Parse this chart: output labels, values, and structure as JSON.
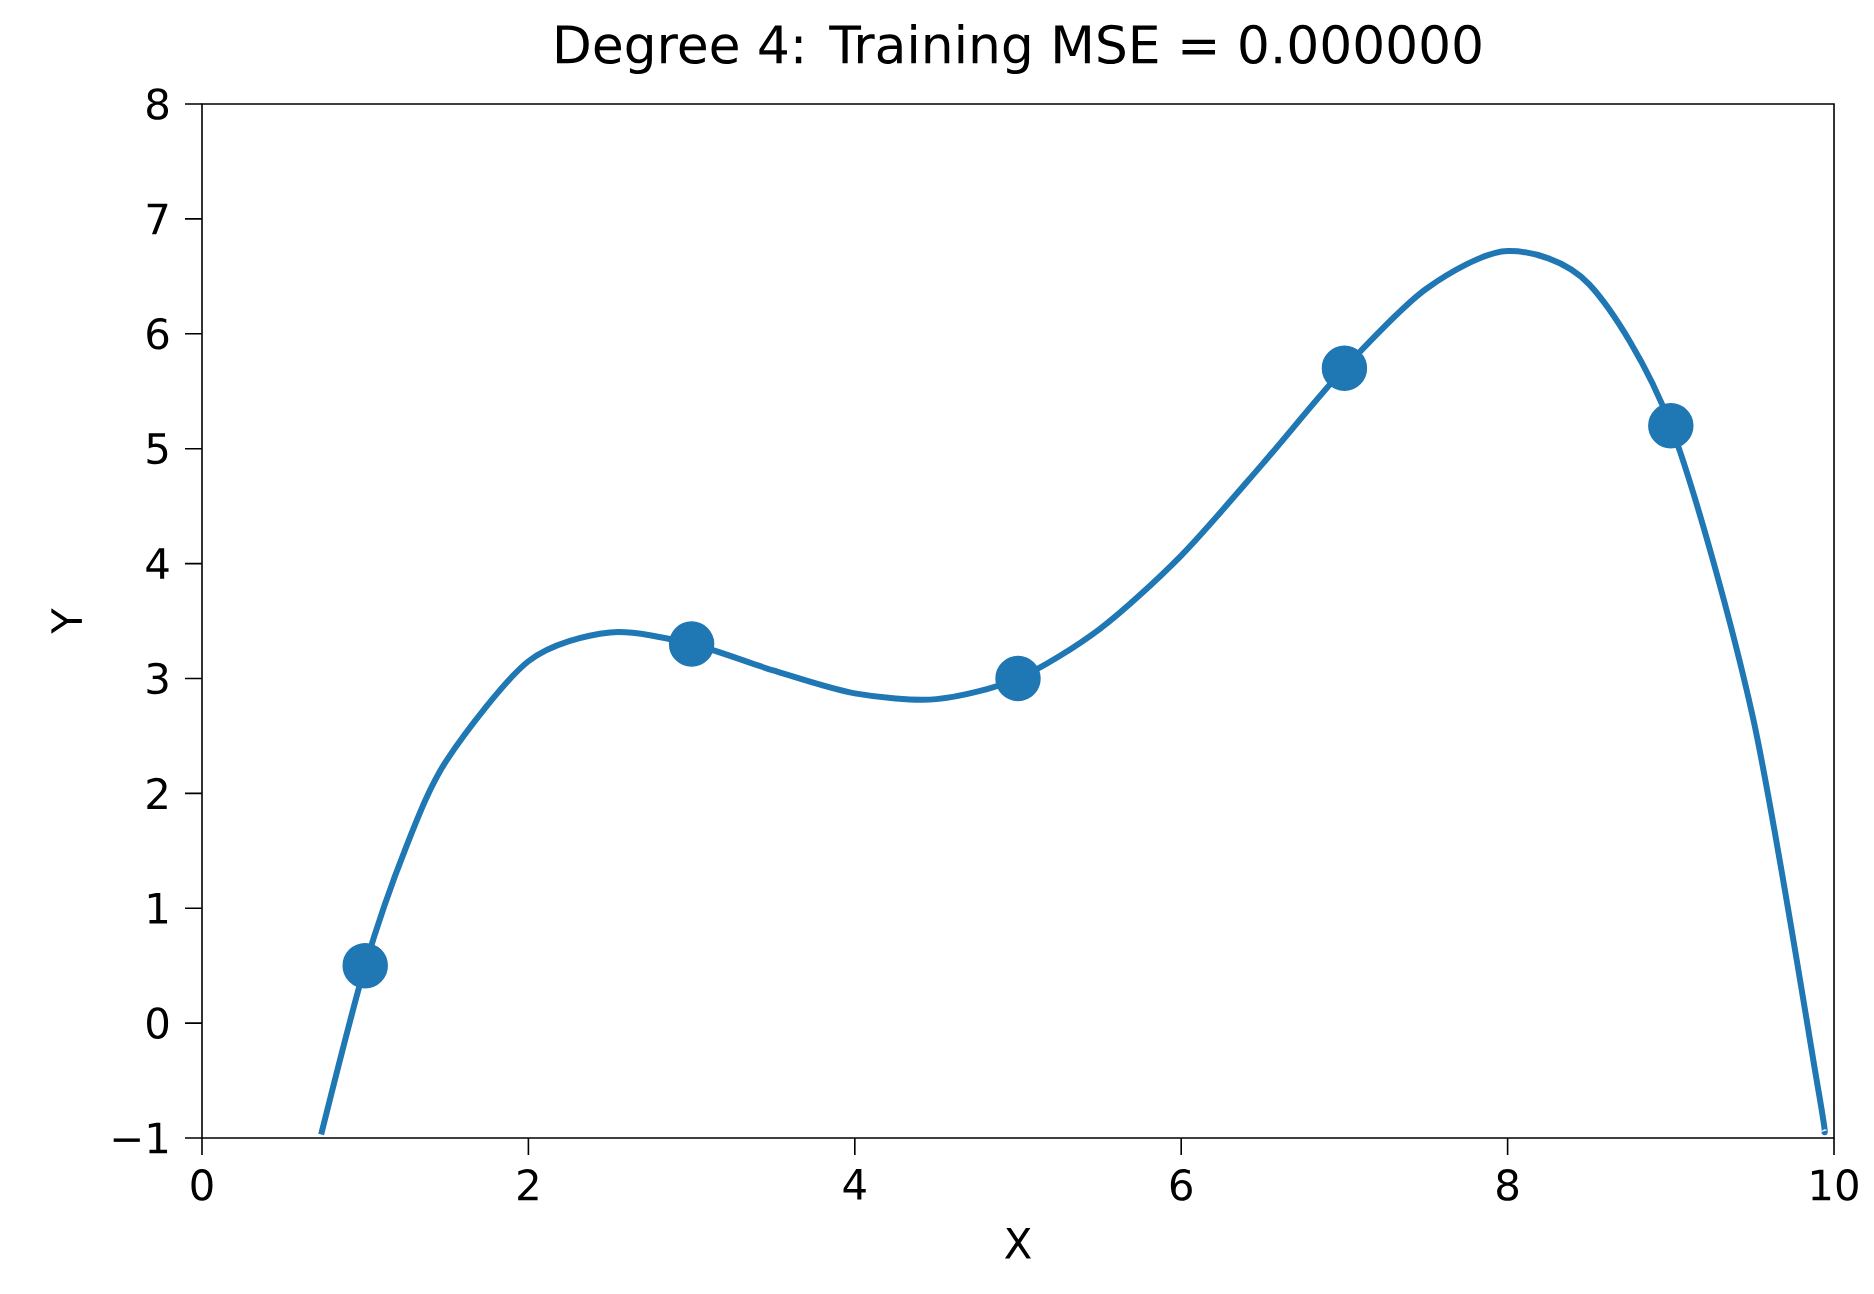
{
  "chart_data": {
    "type": "scatter",
    "title": "Degree 4: Training MSE = 0.000000",
    "xlabel": "X",
    "ylabel": "Y",
    "xlim": [
      0,
      10
    ],
    "ylim": [
      -1,
      8
    ],
    "xticks": [
      0,
      2,
      4,
      6,
      8,
      10
    ],
    "yticks": [
      {
        "value": -1,
        "label": "−1"
      },
      0,
      1,
      2,
      3,
      4,
      5,
      6,
      7,
      8
    ],
    "grid": false,
    "series": [
      {
        "type": "line",
        "marker": "none",
        "line_style": "solid",
        "color": "#1f77b4",
        "x": [
          0.73,
          1,
          1.25,
          1.5,
          2,
          2.5,
          3,
          3.5,
          4,
          4.5,
          5,
          5.5,
          6,
          6.5,
          7,
          7.5,
          8,
          8.5,
          9,
          9.5,
          9.9,
          9.94
        ],
        "values": [
          -0.97,
          0.5,
          1.53,
          2.29,
          3.15,
          3.4,
          3.3,
          3.07,
          2.87,
          2.82,
          3,
          3.43,
          4.07,
          4.87,
          5.7,
          6.39,
          6.72,
          6.43,
          5.2,
          2.68,
          -0.55,
          -0.94
        ]
      },
      {
        "marker": "circle",
        "color": "#1f77b4",
        "x": [
          1,
          3,
          5,
          7,
          9
        ],
        "values": [
          0.5,
          3.3,
          3,
          5.7,
          5.2
        ]
      }
    ]
  }
}
